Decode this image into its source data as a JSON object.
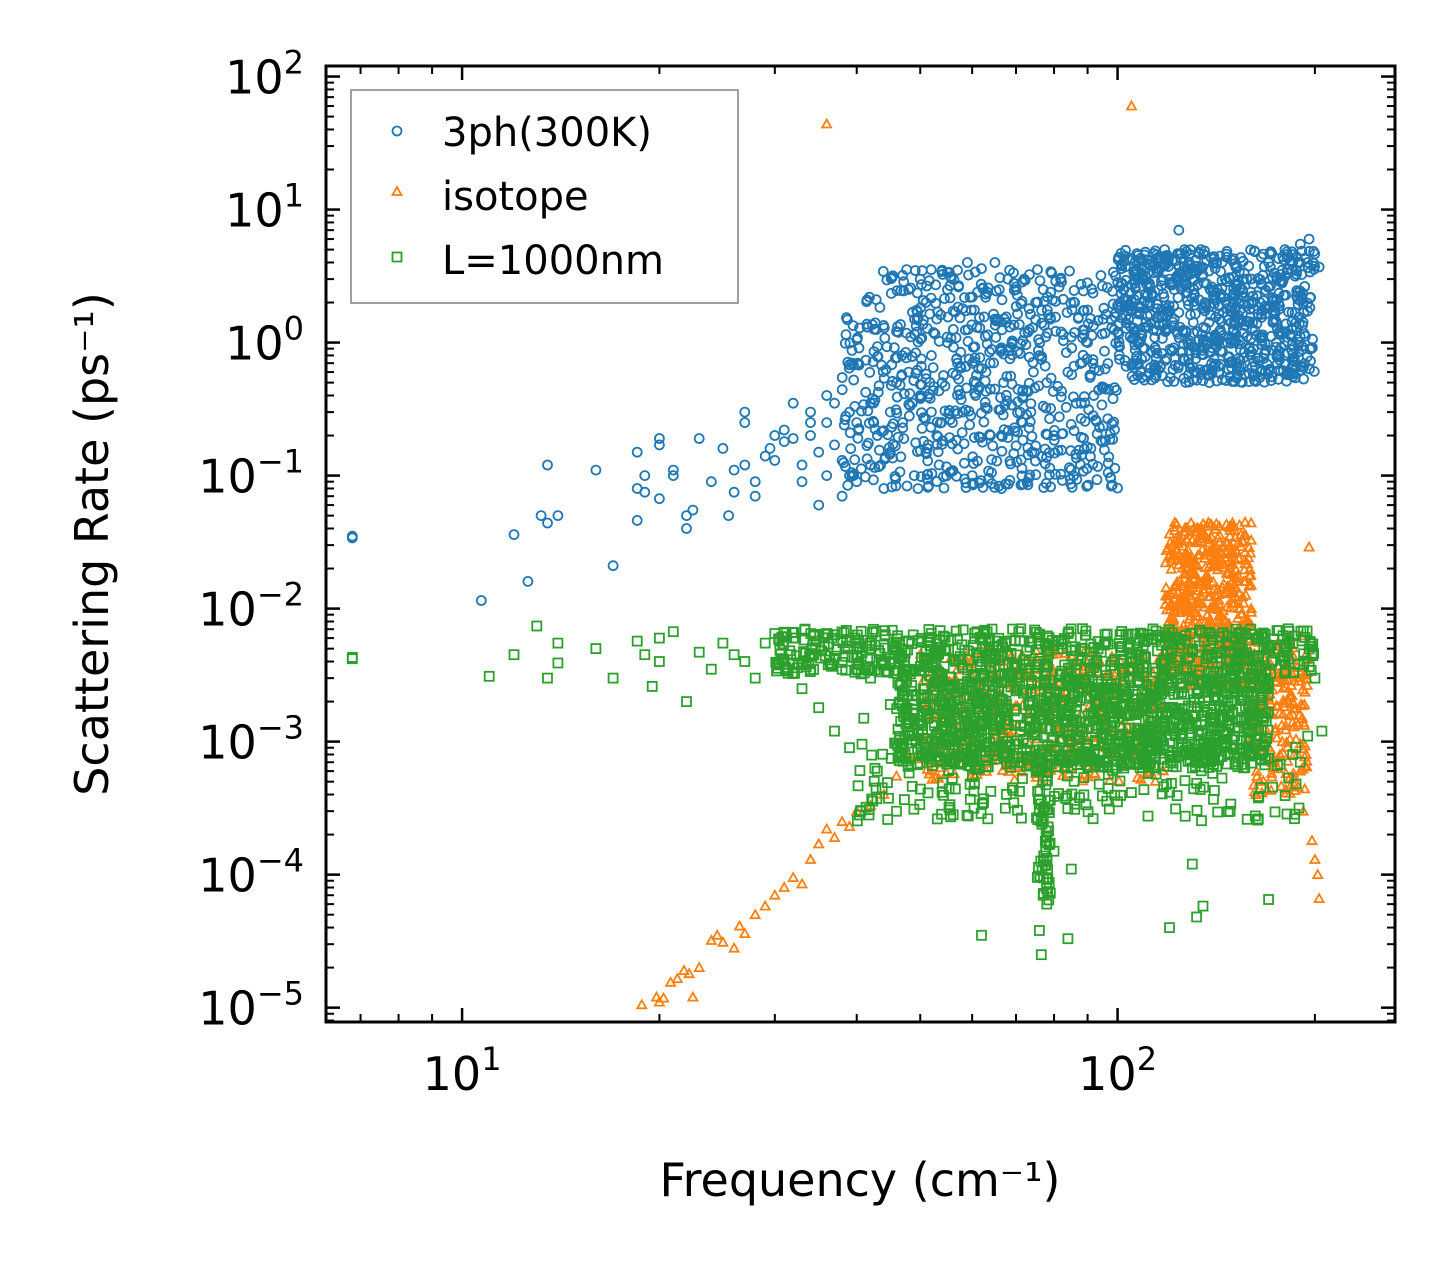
{
  "chart_data": {
    "type": "scatter",
    "xscale": "log",
    "yscale": "log",
    "xlabel": "Frequency (cm⁻¹)",
    "ylabel": "Scattering Rate (ps⁻¹)",
    "xlim": [
      6.2,
      265
    ],
    "ylim": [
      7.8e-06,
      120
    ],
    "x_ticks": [
      {
        "value": 10,
        "base": "10",
        "exp": "1"
      },
      {
        "value": 100,
        "base": "10",
        "exp": "2"
      }
    ],
    "y_ticks": [
      {
        "value": 1e-05,
        "base": "10",
        "exp": "−5"
      },
      {
        "value": 0.0001,
        "base": "10",
        "exp": "−4"
      },
      {
        "value": 0.001,
        "base": "10",
        "exp": "−3"
      },
      {
        "value": 0.01,
        "base": "10",
        "exp": "−2"
      },
      {
        "value": 0.1,
        "base": "10",
        "exp": "−1"
      },
      {
        "value": 1,
        "base": "10",
        "exp": "0"
      },
      {
        "value": 10,
        "base": "10",
        "exp": "1"
      },
      {
        "value": 100,
        "base": "10",
        "exp": "2"
      }
    ],
    "legend_position": "top-left",
    "series": [
      {
        "name": "3ph(300K)",
        "marker": "circle",
        "color": "#1f77b4",
        "points": [
          [
            6.8,
            0.035
          ],
          [
            6.8,
            0.034
          ],
          [
            10.7,
            0.0115
          ],
          [
            12,
            0.036
          ],
          [
            12.6,
            0.016
          ],
          [
            13.2,
            0.05
          ],
          [
            13.5,
            0.12
          ],
          [
            13.5,
            0.044
          ],
          [
            14,
            0.05
          ],
          [
            16,
            0.11
          ],
          [
            17,
            0.021
          ],
          [
            18.5,
            0.15
          ],
          [
            18.5,
            0.08
          ],
          [
            18.5,
            0.046
          ],
          [
            19,
            0.075
          ],
          [
            19,
            0.1
          ],
          [
            20,
            0.19
          ],
          [
            20,
            0.17
          ],
          [
            20,
            0.067
          ],
          [
            21,
            0.11
          ],
          [
            21,
            0.1
          ],
          [
            22,
            0.05
          ],
          [
            22,
            0.04
          ],
          [
            22.5,
            0.055
          ],
          [
            23,
            0.19
          ],
          [
            24,
            0.09
          ],
          [
            25,
            0.16
          ],
          [
            25.5,
            0.05
          ],
          [
            26,
            0.11
          ],
          [
            26,
            0.075
          ],
          [
            27,
            0.3
          ],
          [
            27,
            0.25
          ],
          [
            27,
            0.12
          ],
          [
            28,
            0.09
          ],
          [
            28,
            0.07
          ],
          [
            29,
            0.14
          ],
          [
            29.5,
            0.16
          ],
          [
            30,
            0.2
          ],
          [
            30,
            0.13
          ],
          [
            31,
            0.22
          ],
          [
            31,
            0.18
          ],
          [
            32,
            0.35
          ],
          [
            32,
            0.19
          ],
          [
            33,
            0.12
          ],
          [
            33,
            0.09
          ],
          [
            34,
            0.3
          ],
          [
            34,
            0.25
          ],
          [
            34,
            0.2
          ],
          [
            35,
            0.15
          ],
          [
            35,
            0.06
          ],
          [
            36,
            0.4
          ],
          [
            36,
            0.25
          ],
          [
            36,
            0.1
          ],
          [
            37,
            0.35
          ],
          [
            37,
            0.17
          ],
          [
            38,
            0.13
          ],
          [
            38,
            0.07
          ],
          [
            39,
            0.3
          ],
          [
            39,
            0.1
          ],
          [
            40,
            0.25
          ],
          [
            40,
            0.09
          ],
          [
            42,
            0.35
          ],
          [
            42,
            0.12
          ],
          [
            43,
            0.2
          ],
          [
            44,
            0.08
          ],
          [
            45,
            0.3
          ],
          [
            45,
            0.15
          ],
          [
            46,
            0.5
          ],
          [
            47,
            0.25
          ],
          [
            48,
            0.6
          ],
          [
            48,
            2.5
          ],
          [
            49,
            1.5
          ],
          [
            50,
            3
          ],
          [
            50,
            0.4
          ],
          [
            51,
            2
          ],
          [
            51,
            0.15
          ],
          [
            52,
            0.8
          ],
          [
            52,
            0.3
          ],
          [
            53,
            1.5
          ],
          [
            53,
            0.2
          ],
          [
            54,
            3.5
          ],
          [
            54,
            0.5
          ],
          [
            55,
            2.5
          ],
          [
            55,
            1
          ],
          [
            56,
            0.25
          ],
          [
            57,
            3.5
          ],
          [
            57,
            0.7
          ],
          [
            58,
            1.8
          ],
          [
            58,
            0.3
          ],
          [
            59,
            4
          ],
          [
            60,
            2.2
          ],
          [
            60,
            0.1
          ],
          [
            61,
            1.3
          ],
          [
            62,
            3.6
          ],
          [
            63,
            0.6
          ],
          [
            64,
            0.2
          ],
          [
            65,
            4
          ],
          [
            65,
            1.5
          ],
          [
            66,
            2.5
          ],
          [
            67,
            0.5
          ],
          [
            68,
            3
          ],
          [
            69,
            1
          ],
          [
            70,
            2.5
          ],
          [
            71,
            0.3
          ],
          [
            72,
            3
          ],
          [
            73,
            1.2
          ],
          [
            74,
            0.15
          ],
          [
            75,
            2
          ],
          [
            76,
            0.8
          ],
          [
            77,
            2.5
          ],
          [
            78,
            0.5
          ],
          [
            79,
            1.5
          ],
          [
            80,
            0.2
          ],
          [
            82,
            1.2
          ],
          [
            84,
            0.6
          ],
          [
            86,
            2
          ],
          [
            88,
            0.35
          ],
          [
            90,
            1
          ],
          [
            92,
            0.4
          ],
          [
            95,
            1.5
          ],
          [
            98,
            1.3
          ],
          [
            100,
            1.2
          ],
          [
            104,
            1.5
          ],
          [
            106,
            1.2
          ],
          [
            108,
            1.7
          ],
          [
            110,
            1.3
          ],
          [
            112,
            2
          ],
          [
            115,
            1.8
          ],
          [
            118,
            5
          ],
          [
            120,
            3
          ],
          [
            122,
            1.5
          ],
          [
            124,
            7
          ],
          [
            126,
            4
          ],
          [
            128,
            1
          ],
          [
            130,
            3
          ],
          [
            132,
            0.6
          ],
          [
            134,
            5
          ],
          [
            136,
            2
          ],
          [
            138,
            0.5
          ],
          [
            140,
            4
          ],
          [
            143,
            1.5
          ],
          [
            146,
            3
          ],
          [
            150,
            1.2
          ],
          [
            155,
            2.5
          ],
          [
            160,
            3
          ],
          [
            165,
            2
          ],
          [
            170,
            4
          ],
          [
            175,
            3
          ],
          [
            180,
            5
          ],
          [
            185,
            4
          ],
          [
            190,
            5.5
          ],
          [
            195,
            4
          ],
          [
            203,
            3.7
          ],
          [
            196,
            6
          ]
        ],
        "clusters": [
          {
            "x_range": [
              38,
              100
            ],
            "logy_range": [
              -1.1,
              0.55
            ],
            "count": 700
          },
          {
            "x_range": [
              100,
              200
            ],
            "logy_range": [
              -0.3,
              0.7
            ],
            "count": 800
          }
        ]
      },
      {
        "name": "isotope",
        "marker": "triangle",
        "color": "#ff7f0e",
        "points": [
          [
            18.8,
            1.05e-05
          ],
          [
            19.8,
            1.2e-05
          ],
          [
            20,
            1.1e-05
          ],
          [
            20.3,
            1.18e-05
          ],
          [
            20.8,
            1.55e-05
          ],
          [
            21.3,
            1.65e-05
          ],
          [
            21.8,
            1.9e-05
          ],
          [
            22.2,
            1.8e-05
          ],
          [
            22.5,
            1.2e-05
          ],
          [
            23,
            2e-05
          ],
          [
            24,
            3.2e-05
          ],
          [
            24.5,
            3.5e-05
          ],
          [
            25,
            3.1e-05
          ],
          [
            26,
            2.8e-05
          ],
          [
            26.5,
            4.1e-05
          ],
          [
            27,
            3.6e-05
          ],
          [
            28,
            5e-05
          ],
          [
            29,
            5.8e-05
          ],
          [
            30,
            7e-05
          ],
          [
            31,
            8e-05
          ],
          [
            32,
            9.5e-05
          ],
          [
            33,
            8.5e-05
          ],
          [
            34,
            0.00013
          ],
          [
            35,
            0.00017
          ],
          [
            36,
            0.00022
          ],
          [
            37,
            0.00019
          ],
          [
            38,
            0.00025
          ],
          [
            39,
            0.00023
          ],
          [
            40,
            0.0003
          ],
          [
            42,
            0.00033
          ],
          [
            44,
            0.0004
          ],
          [
            46,
            0.00055
          ],
          [
            48,
            0.0008
          ],
          [
            50,
            0.001
          ],
          [
            36,
            44
          ],
          [
            105,
            60
          ],
          [
            196,
            0.029
          ],
          [
            200,
            0.00013
          ],
          [
            202,
            0.0001
          ],
          [
            203,
            6.6e-05
          ],
          [
            198,
            0.00018
          ],
          [
            192,
            0.0003
          ],
          [
            190,
            0.0006
          ],
          [
            188,
            0.0008
          ]
        ],
        "clusters": [
          {
            "x_range": [
              50,
              118
            ],
            "logy_range": [
              -3.3,
              -2.3
            ],
            "count": 450
          },
          {
            "x_range": [
              118,
              160
            ],
            "logy_range": [
              -2.6,
              -1.35
            ],
            "count": 550
          },
          {
            "x_range": [
              160,
              195
            ],
            "logy_range": [
              -3.4,
              -2.2
            ],
            "count": 200
          }
        ]
      },
      {
        "name": "L=1000nm",
        "marker": "square",
        "color": "#2ca02c",
        "points": [
          [
            6.8,
            0.0042
          ],
          [
            6.8,
            0.0043
          ],
          [
            11,
            0.0031
          ],
          [
            12,
            0.0045
          ],
          [
            13,
            0.0074
          ],
          [
            13.5,
            0.003
          ],
          [
            14,
            0.0039
          ],
          [
            14,
            0.0055
          ],
          [
            16,
            0.005
          ],
          [
            17,
            0.003
          ],
          [
            18.5,
            0.0057
          ],
          [
            19,
            0.0045
          ],
          [
            19.5,
            0.0026
          ],
          [
            20,
            0.006
          ],
          [
            20,
            0.004
          ],
          [
            21,
            0.0067
          ],
          [
            22,
            0.002
          ],
          [
            23,
            0.0047
          ],
          [
            24,
            0.0035
          ],
          [
            25,
            0.0055
          ],
          [
            26,
            0.0045
          ],
          [
            27,
            0.004
          ],
          [
            28,
            0.003
          ],
          [
            29,
            0.0055
          ],
          [
            30,
            0.0065
          ],
          [
            31,
            0.004
          ],
          [
            32,
            0.006
          ],
          [
            33,
            0.0025
          ],
          [
            34,
            0.0045
          ],
          [
            35,
            0.0018
          ],
          [
            36,
            0.0065
          ],
          [
            37,
            0.0012
          ],
          [
            38,
            0.0035
          ],
          [
            39,
            0.0009
          ],
          [
            40,
            0.005
          ],
          [
            41,
            0.0015
          ],
          [
            42,
            0.003
          ],
          [
            43,
            0.0006
          ],
          [
            44,
            0.004
          ],
          [
            45,
            0.0019
          ],
          [
            46,
            0.0003
          ],
          [
            62,
            3.5e-05
          ],
          [
            76,
            3.8e-05
          ],
          [
            76.5,
            2.5e-05
          ],
          [
            77,
            7e-05
          ],
          [
            78,
            6e-05
          ],
          [
            80,
            0.00015
          ],
          [
            84,
            3.3e-05
          ],
          [
            85,
            0.00011
          ],
          [
            120,
            4e-05
          ],
          [
            130,
            0.00012
          ],
          [
            132,
            4.8e-05
          ],
          [
            135,
            5.8e-05
          ],
          [
            170,
            6.5e-05
          ],
          [
            185,
            0.0008
          ],
          [
            190,
            0.0007
          ],
          [
            195,
            0.0011
          ],
          [
            197,
            0.0055
          ],
          [
            205,
            0.0012
          ],
          [
            200,
            0.003
          ],
          [
            198,
            0.0045
          ]
        ],
        "clusters": [
          {
            "x_range": [
              30,
              200
            ],
            "logy_range": [
              -2.5,
              -2.15
            ],
            "count": 650
          },
          {
            "x_range": [
              46,
              170
            ],
            "logy_range": [
              -3.2,
              -2.5
            ],
            "count": 1200
          },
          {
            "x_range": [
              40,
              190
            ],
            "logy_range": [
              -3.6,
              -3.0
            ],
            "count": 220
          },
          {
            "x_range": [
              75,
              79
            ],
            "logy_range": [
              -4.2,
              -3.1
            ],
            "count": 60
          }
        ]
      }
    ]
  }
}
